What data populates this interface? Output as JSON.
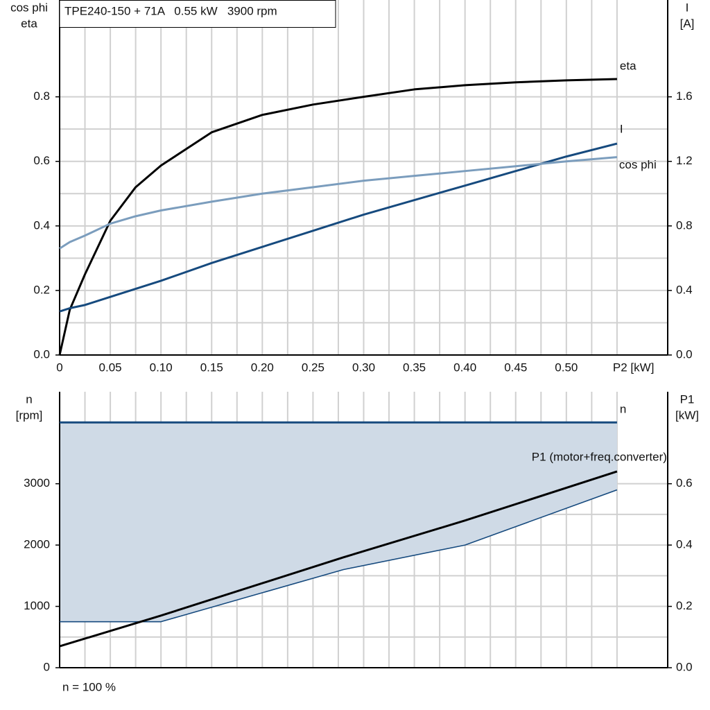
{
  "chart_data": [
    {
      "type": "line",
      "title": "TPE240-150 + 71A   0.55 kW   3900 rpm",
      "ylabel": [
        "cos phi",
        "eta"
      ],
      "y2label": [
        "I",
        "[A]"
      ],
      "xlim": [
        0,
        0.6
      ],
      "xticks": [
        0,
        0.05,
        {
          "value": 0.1,
          "label": "0.10"
        },
        0.15,
        {
          "value": 0.2,
          "label": "0.20"
        },
        0.25,
        {
          "value": 0.3,
          "label": "0.30"
        },
        0.35,
        {
          "value": 0.4,
          "label": "0.40"
        },
        0.45,
        {
          "value": 0.5,
          "label": "0.50"
        },
        {
          "value": 0.55,
          "label": "P2 [kW]"
        }
      ],
      "ylim": [
        0,
        1.1
      ],
      "yticks": [
        {
          "value": 0,
          "label": "0.0"
        },
        0.2,
        0.4,
        0.6,
        0.8
      ],
      "y2lim": [
        0,
        2.2
      ],
      "y2ticks": [
        {
          "value": 0,
          "label": "0.0"
        },
        0.4,
        0.8,
        1.2,
        1.6
      ],
      "grid": true,
      "x": [
        0,
        0.01,
        0.025,
        0.05,
        0.075,
        0.1,
        0.15,
        0.2,
        0.25,
        0.3,
        0.35,
        0.4,
        0.45,
        0.5,
        0.55
      ],
      "series": [
        {
          "name": "eta",
          "color": "#000000",
          "values": [
            0,
            0.14,
            0.25,
            0.416,
            0.52,
            0.587,
            0.69,
            0.744,
            0.776,
            0.8,
            0.823,
            0.836,
            0.845,
            0.851,
            0.855
          ]
        },
        {
          "name": "I",
          "color": "#164a7e",
          "axis": "y2",
          "values": [
            0.27,
            0.29,
            0.31,
            0.36,
            0.41,
            0.46,
            0.57,
            0.67,
            0.77,
            0.87,
            0.96,
            1.05,
            1.14,
            1.23,
            1.31
          ]
        },
        {
          "name": "cos phi",
          "color": "#7b9dbd",
          "values": [
            0.33,
            0.35,
            0.37,
            0.407,
            0.43,
            0.448,
            0.475,
            0.5,
            0.52,
            0.54,
            0.555,
            0.57,
            0.585,
            0.6,
            0.613
          ]
        }
      ]
    },
    {
      "type": "line",
      "ylabel": [
        "n",
        "[rpm]"
      ],
      "y2label": [
        "P1",
        "[kW]"
      ],
      "note": "n = 100 %",
      "xlim": [
        0,
        0.6
      ],
      "ylim": [
        0,
        4500
      ],
      "yticks": [
        0,
        1000,
        2000,
        3000
      ],
      "y2lim": [
        0,
        0.9
      ],
      "y2ticks": [
        {
          "value": 0,
          "label": "0.0"
        },
        0.2,
        0.4,
        0.6
      ],
      "grid": true,
      "band_color": "#cfdae6",
      "x": [
        0,
        0.1,
        0.28,
        0.4,
        0.55
      ],
      "series": [
        {
          "name": "n",
          "color": "#164a7e",
          "values": [
            4000,
            4000,
            4000,
            4000,
            4000
          ]
        },
        {
          "color": "#164a7e",
          "values": [
            750,
            750,
            1600,
            2000,
            2900
          ]
        },
        {
          "name": "P1 (motor+freq.converter)",
          "color": "#000000",
          "axis": "y2",
          "values": [
            0.07,
            0.17,
            0.36,
            0.48,
            0.64
          ]
        }
      ]
    }
  ]
}
